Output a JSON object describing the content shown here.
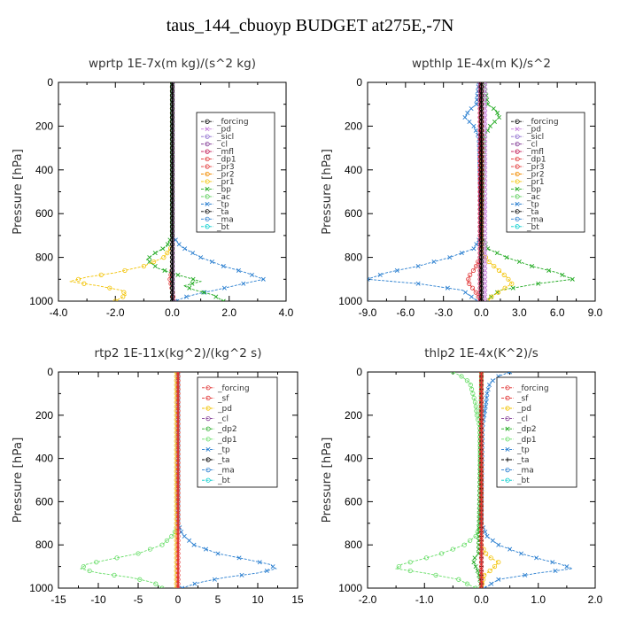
{
  "figure": {
    "title": "taus_144_cbuoyp  BUDGET at275E,-7N"
  },
  "chart_data": [
    {
      "type": "line",
      "title": "wprtp  1E-7x(m kg)/(s^2 kg)",
      "ylabel": "Pressure [hPa]",
      "xlim": [
        -4,
        4
      ],
      "ylim": [
        1000,
        0
      ],
      "xticks": [
        "-4.0",
        "-2.0",
        "0.0",
        "2.0",
        "4.0"
      ],
      "yticks": [
        "0",
        "200",
        "400",
        "600",
        "800",
        "1000"
      ],
      "legend": [
        "_forcing",
        "_pd",
        "_sicl",
        "_cl",
        "_mfl",
        "_dp1",
        "_pr3",
        "_pr2",
        "_pr1",
        "_bp",
        "_ac",
        "_tp",
        "_ta",
        "_ma",
        "_bt"
      ],
      "series": [
        {
          "name": "_tp",
          "color": "#2a7fd0",
          "marker": "x",
          "p": [
            0,
            700,
            750,
            800,
            840,
            870,
            900,
            920,
            950,
            975,
            1000
          ],
          "v": [
            0,
            0,
            0.3,
            1.0,
            1.8,
            2.6,
            3.2,
            2.5,
            1.5,
            0.6,
            0.1
          ]
        },
        {
          "name": "_bp",
          "color": "#22aa22",
          "marker": "x",
          "p": [
            0,
            700,
            750,
            780,
            810,
            850,
            880,
            910,
            930,
            950,
            970,
            1000
          ],
          "v": [
            0,
            0,
            -0.2,
            -0.6,
            -0.9,
            -0.5,
            0.2,
            1.0,
            0.4,
            0.8,
            1.4,
            1.8
          ]
        },
        {
          "name": "_pr1",
          "color": "#f2c200",
          "marker": "o",
          "p": [
            0,
            750,
            800,
            840,
            870,
            890,
            910,
            930,
            950,
            970,
            1000
          ],
          "v": [
            0,
            0,
            -0.3,
            -1.0,
            -2.0,
            -3.0,
            -3.6,
            -2.6,
            -1.8,
            -1.6,
            -2.0
          ]
        },
        {
          "name": "_dp1",
          "color": "#e03030",
          "marker": "o",
          "p": [
            0,
            850,
            900,
            950,
            1000
          ],
          "v": [
            0,
            0,
            -0.08,
            0,
            0.05
          ]
        },
        {
          "name": "_ac",
          "color": "#55cc55",
          "marker": "o",
          "p": [
            0,
            1000
          ],
          "v": [
            0,
            0
          ]
        },
        {
          "name": "_pd",
          "color": "#c77fdd",
          "marker": "x",
          "p": [
            0,
            1000
          ],
          "v": [
            0.02,
            0.02
          ]
        },
        {
          "name": "_forcing",
          "color": "#000000",
          "marker": "o",
          "p": [
            0,
            1000
          ],
          "v": [
            0,
            0
          ]
        }
      ]
    },
    {
      "type": "line",
      "title": "wpthlp  1E-4x(m K)/s^2",
      "ylabel": "Pressure [hPa]",
      "xlim": [
        -9,
        9
      ],
      "ylim": [
        1000,
        0
      ],
      "xticks": [
        "-9.0",
        "-6.0",
        "-3.0",
        "0.0",
        "3.0",
        "6.0",
        "9.0"
      ],
      "yticks": [
        "0",
        "200",
        "400",
        "600",
        "800",
        "1000"
      ],
      "legend": [
        "_forcing",
        "_pd",
        "_sicl",
        "_cl",
        "_mfl",
        "_dp1",
        "_pr3",
        "_pr2",
        "_pr1",
        "_bp",
        "_ac",
        "_tp",
        "_ta",
        "_ma",
        "_bt"
      ],
      "series": [
        {
          "name": "_tp",
          "color": "#2a7fd0",
          "marker": "x",
          "p": [
            0,
            100,
            130,
            160,
            200,
            250,
            700,
            760,
            800,
            840,
            870,
            900,
            920,
            950,
            1000
          ],
          "v": [
            -0.2,
            -0.4,
            -1.0,
            -1.3,
            -0.6,
            -0.2,
            0,
            -0.6,
            -2.5,
            -5.0,
            -7.5,
            -9.0,
            -5.0,
            -1.5,
            -0.3
          ]
        },
        {
          "name": "_bp",
          "color": "#22aa22",
          "marker": "x",
          "p": [
            0,
            100,
            130,
            160,
            200,
            250,
            700,
            760,
            800,
            840,
            870,
            900,
            920,
            950,
            1000
          ],
          "v": [
            0.2,
            0.5,
            1.2,
            1.4,
            0.7,
            0.2,
            0,
            0.5,
            2.0,
            4.0,
            6.0,
            7.2,
            4.5,
            1.5,
            0.3
          ]
        },
        {
          "name": "_pr1",
          "color": "#f2c200",
          "marker": "o",
          "p": [
            0,
            780,
            820,
            860,
            890,
            920,
            950,
            980,
            1000
          ],
          "v": [
            0,
            0.1,
            0.6,
            1.4,
            2.0,
            2.4,
            1.6,
            0.8,
            0.5
          ]
        },
        {
          "name": "_dp1",
          "color": "#e03030",
          "marker": "o",
          "p": [
            0,
            800,
            850,
            880,
            910,
            940,
            970,
            1000
          ],
          "v": [
            0,
            -0.1,
            -0.5,
            -0.9,
            -1.1,
            -0.7,
            -0.3,
            -0.1
          ]
        },
        {
          "name": "_mfl",
          "color": "#c01050",
          "marker": "o",
          "p": [
            0,
            1000
          ],
          "v": [
            -0.1,
            -0.1
          ]
        },
        {
          "name": "_pd",
          "color": "#c77fdd",
          "marker": "x",
          "p": [
            0,
            1000
          ],
          "v": [
            0.3,
            0.3
          ]
        },
        {
          "name": "_forcing",
          "color": "#000000",
          "marker": "o",
          "p": [
            0,
            1000
          ],
          "v": [
            0,
            0
          ]
        }
      ]
    },
    {
      "type": "line",
      "title": "rtp2  1E-11x(kg^2)/(kg^2 s)",
      "ylabel": "Pressure [hPa]",
      "xlim": [
        -15,
        15
      ],
      "ylim": [
        1000,
        0
      ],
      "xticks": [
        "-15",
        "-10",
        "-5",
        "0",
        "5",
        "10",
        "15"
      ],
      "yticks": [
        "0",
        "200",
        "400",
        "600",
        "800",
        "1000"
      ],
      "legend": [
        "_forcing",
        "_sf",
        "_pd",
        "_cl",
        "_dp2",
        "_dp1",
        "_tp",
        "_ta",
        "_ma",
        "_bt"
      ],
      "series": [
        {
          "name": "_tp",
          "color": "#2a7fd0",
          "marker": "x",
          "p": [
            0,
            700,
            750,
            800,
            840,
            870,
            890,
            910,
            930,
            950,
            975,
            1000
          ],
          "v": [
            0,
            0,
            0.5,
            2.0,
            5.0,
            9.0,
            11.5,
            12.3,
            10.0,
            6.0,
            2.5,
            0.5
          ]
        },
        {
          "name": "_dp1",
          "color": "#66dd66",
          "marker": "o",
          "p": [
            0,
            700,
            750,
            800,
            840,
            870,
            890,
            910,
            930,
            950,
            975,
            1000
          ],
          "v": [
            0,
            0,
            -0.5,
            -2.0,
            -5.0,
            -9.0,
            -11.5,
            -12.2,
            -10.0,
            -6.0,
            -3.0,
            -2.0
          ]
        },
        {
          "name": "_pd",
          "color": "#f2c200",
          "marker": "o",
          "p": [
            0,
            1000
          ],
          "v": [
            -0.2,
            -0.2
          ]
        },
        {
          "name": "_forcing",
          "color": "#e03030",
          "marker": "o",
          "p": [
            0,
            1000
          ],
          "v": [
            0,
            0
          ]
        }
      ]
    },
    {
      "type": "line",
      "title": "thlp2  1E-4x(K^2)/s",
      "ylabel": "Pressure [hPa]",
      "xlim": [
        -2,
        2
      ],
      "ylim": [
        1000,
        0
      ],
      "xticks": [
        "-2.0",
        "-1.0",
        "0.0",
        "1.0",
        "2.0"
      ],
      "yticks": [
        "0",
        "200",
        "400",
        "600",
        "800",
        "1000"
      ],
      "legend": [
        "_forcing",
        "_sf",
        "_pd",
        "_cl",
        "_dp2",
        "_dp1",
        "_tp",
        "_ta",
        "_ma",
        "_bt"
      ],
      "series": [
        {
          "name": "_tp",
          "color": "#2a7fd0",
          "marker": "x",
          "p": [
            0,
            20,
            50,
            100,
            150,
            200,
            250,
            700,
            760,
            800,
            840,
            870,
            890,
            910,
            930,
            960,
            1000
          ],
          "v": [
            0.5,
            0.3,
            0.15,
            0.1,
            0.08,
            0.05,
            0.02,
            0,
            0.1,
            0.3,
            0.7,
            1.1,
            1.4,
            1.6,
            1.0,
            0.3,
            0.05
          ]
        },
        {
          "name": "_dp1",
          "color": "#66dd66",
          "marker": "o",
          "p": [
            0,
            20,
            50,
            100,
            150,
            200,
            250,
            700,
            760,
            800,
            840,
            870,
            890,
            910,
            930,
            960,
            1000
          ],
          "v": [
            -0.5,
            -0.35,
            -0.2,
            -0.15,
            -0.1,
            -0.08,
            -0.03,
            0,
            -0.1,
            -0.3,
            -0.7,
            -1.1,
            -1.4,
            -1.5,
            -1.0,
            -0.4,
            -0.1
          ]
        },
        {
          "name": "_pd",
          "color": "#f2c200",
          "marker": "o",
          "p": [
            0,
            800,
            850,
            880,
            910,
            940,
            1000
          ],
          "v": [
            0,
            0,
            0.1,
            0.3,
            0.2,
            0.05,
            0
          ]
        },
        {
          "name": "_dp2",
          "color": "#22aa22",
          "marker": "x",
          "p": [
            0,
            840,
            870,
            900,
            930,
            1000
          ],
          "v": [
            0,
            -0.05,
            -0.15,
            -0.1,
            -0.05,
            0
          ]
        },
        {
          "name": "_ta",
          "color": "#000000",
          "marker": "+",
          "p": [
            0,
            1000
          ],
          "v": [
            0,
            0
          ]
        },
        {
          "name": "_forcing",
          "color": "#e03030",
          "marker": "o",
          "p": [
            0,
            1000
          ],
          "v": [
            0,
            0
          ]
        }
      ]
    }
  ]
}
